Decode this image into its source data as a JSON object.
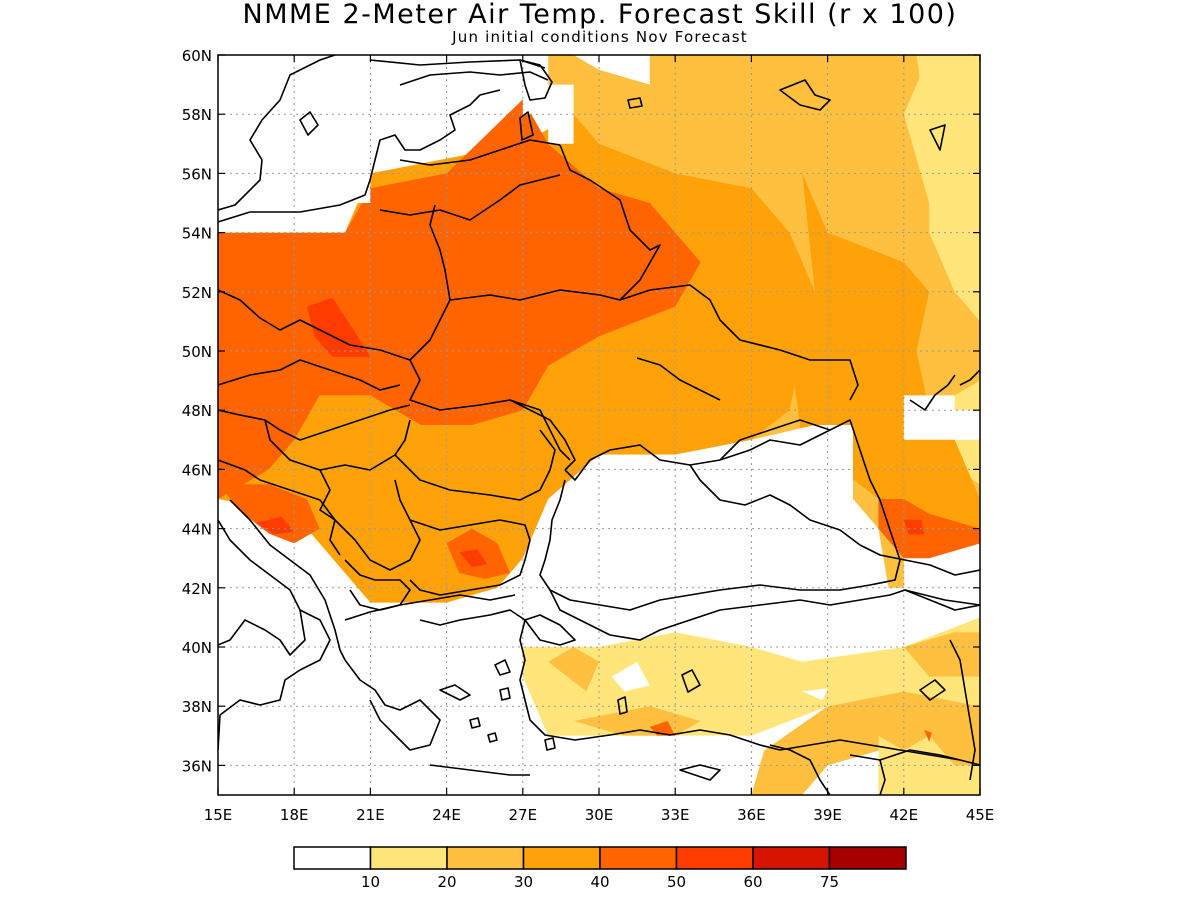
{
  "title": "NMME 2-Meter Air Temp. Forecast Skill (r x 100)",
  "subtitle": "Jun initial conditions   Nov Forecast",
  "map": {
    "lon_range": [
      15,
      45
    ],
    "lat_range": [
      35,
      60
    ],
    "lon_ticks": [
      {
        "value": 15,
        "label": "15E"
      },
      {
        "value": 18,
        "label": "18E"
      },
      {
        "value": 21,
        "label": "21E"
      },
      {
        "value": 24,
        "label": "24E"
      },
      {
        "value": 27,
        "label": "27E"
      },
      {
        "value": 30,
        "label": "30E"
      },
      {
        "value": 33,
        "label": "33E"
      },
      {
        "value": 36,
        "label": "36E"
      },
      {
        "value": 39,
        "label": "39E"
      },
      {
        "value": 42,
        "label": "42E"
      },
      {
        "value": 45,
        "label": "45E"
      }
    ],
    "lat_ticks": [
      {
        "value": 36,
        "label": "36N"
      },
      {
        "value": 38,
        "label": "38N"
      },
      {
        "value": 40,
        "label": "40N"
      },
      {
        "value": 42,
        "label": "42N"
      },
      {
        "value": 44,
        "label": "44N"
      },
      {
        "value": 46,
        "label": "46N"
      },
      {
        "value": 48,
        "label": "48N"
      },
      {
        "value": 50,
        "label": "50N"
      },
      {
        "value": 52,
        "label": "52N"
      },
      {
        "value": 54,
        "label": "54N"
      },
      {
        "value": 56,
        "label": "56N"
      },
      {
        "value": 58,
        "label": "58N"
      },
      {
        "value": 60,
        "label": "60N"
      }
    ],
    "grid": "dotted"
  },
  "colorbar": {
    "colors": [
      "#ffffff",
      "#ffe57a",
      "#ffc040",
      "#ffa20a",
      "#ff6400",
      "#ff3c00",
      "#d71400",
      "#a50000"
    ],
    "labels": [
      "10",
      "20",
      "30",
      "40",
      "50",
      "60",
      "75"
    ]
  },
  "regions": [
    {
      "name": "c2-east",
      "level": 2,
      "pts": [
        [
          28,
          60
        ],
        [
          45,
          60
        ],
        [
          45,
          44
        ],
        [
          42,
          44
        ],
        [
          42,
          42
        ],
        [
          41,
          42
        ],
        [
          40,
          44.5
        ],
        [
          38,
          45
        ],
        [
          36,
          46
        ],
        [
          33,
          46.5
        ],
        [
          30,
          46.5
        ],
        [
          28,
          47
        ],
        [
          28,
          60
        ]
      ]
    },
    {
      "name": "c1-far-east",
      "level": 1,
      "pts": [
        [
          42.5,
          60
        ],
        [
          45,
          60
        ],
        [
          45,
          51
        ],
        [
          44,
          52
        ],
        [
          43,
          54
        ],
        [
          43,
          57
        ],
        [
          42.5,
          60
        ]
      ]
    },
    {
      "name": "c1-east-lower",
      "level": 1,
      "pts": [
        [
          45,
          49
        ],
        [
          44,
          48.5
        ],
        [
          44,
          46
        ],
        [
          45,
          45.5
        ],
        [
          45,
          49
        ]
      ]
    },
    {
      "name": "c3-central",
      "level": 3,
      "pts": [
        [
          15,
          54
        ],
        [
          20,
          54
        ],
        [
          21,
          56
        ],
        [
          27,
          57
        ],
        [
          29,
          58
        ],
        [
          30,
          57
        ],
        [
          33,
          56
        ],
        [
          36,
          55.5
        ],
        [
          37.5,
          54
        ],
        [
          38.5,
          52
        ],
        [
          38,
          50
        ],
        [
          37.5,
          48
        ],
        [
          36,
          47
        ],
        [
          33,
          46.5
        ],
        [
          30,
          46.5
        ],
        [
          28,
          45
        ],
        [
          27,
          43
        ],
        [
          26,
          42
        ],
        [
          24,
          41.5
        ],
        [
          21,
          41.5
        ],
        [
          20,
          42.5
        ],
        [
          19,
          43.5
        ],
        [
          18,
          44.5
        ],
        [
          15,
          45
        ],
        [
          15,
          54
        ]
      ]
    },
    {
      "name": "c3-ural-edge",
      "level": 3,
      "pts": [
        [
          38,
          56
        ],
        [
          39,
          54
        ],
        [
          42,
          53
        ],
        [
          43,
          52
        ],
        [
          42.5,
          50
        ],
        [
          43,
          48
        ],
        [
          44,
          47
        ],
        [
          45,
          45
        ],
        [
          45,
          44
        ],
        [
          43,
          44
        ],
        [
          41,
          45
        ],
        [
          38,
          47
        ],
        [
          37.5,
          50
        ],
        [
          38.5,
          52
        ],
        [
          38,
          56
        ]
      ]
    },
    {
      "name": "c4-core",
      "level": 4,
      "pts": [
        [
          15,
          54
        ],
        [
          20,
          54
        ],
        [
          21,
          55.5
        ],
        [
          24,
          56
        ],
        [
          27,
          58.5
        ],
        [
          28,
          57
        ],
        [
          30,
          55.5
        ],
        [
          32,
          55
        ],
        [
          33,
          54
        ],
        [
          34,
          53
        ],
        [
          33,
          51.5
        ],
        [
          30,
          50.5
        ],
        [
          28,
          49.5
        ],
        [
          27,
          48
        ],
        [
          25,
          47.5
        ],
        [
          23,
          47.5
        ],
        [
          21,
          48.5
        ],
        [
          19,
          48.5
        ],
        [
          18,
          47
        ],
        [
          17,
          46
        ],
        [
          15,
          45
        ],
        [
          15,
          54
        ]
      ]
    },
    {
      "name": "c4-balkan",
      "level": 4,
      "pts": [
        [
          15,
          45.5
        ],
        [
          17,
          45.5
        ],
        [
          18.5,
          45
        ],
        [
          19,
          44
        ],
        [
          18,
          43.5
        ],
        [
          16.5,
          44
        ],
        [
          15,
          45.5
        ]
      ]
    },
    {
      "name": "c5-poland",
      "level": 5,
      "pts": [
        [
          18.5,
          51.5
        ],
        [
          19.5,
          51.8
        ],
        [
          20.5,
          50.5
        ],
        [
          21,
          49.8
        ],
        [
          19.5,
          49.8
        ],
        [
          18.8,
          50.5
        ],
        [
          18.5,
          51.5
        ]
      ]
    },
    {
      "name": "c4-bulgaria",
      "level": 4,
      "pts": [
        [
          24,
          43.5
        ],
        [
          25,
          44
        ],
        [
          26,
          43.5
        ],
        [
          26.5,
          42.5
        ],
        [
          25.5,
          42.3
        ],
        [
          24.5,
          42.5
        ],
        [
          24,
          43.5
        ]
      ]
    },
    {
      "name": "c5-bulgaria",
      "level": 5,
      "pts": [
        [
          24.5,
          43.2
        ],
        [
          25.2,
          43.3
        ],
        [
          25.6,
          42.8
        ],
        [
          25,
          42.7
        ],
        [
          24.5,
          43.2
        ]
      ]
    },
    {
      "name": "c5-balkan",
      "level": 5,
      "pts": [
        [
          16.5,
          44.2
        ],
        [
          17.5,
          44.4
        ],
        [
          18,
          43.9
        ],
        [
          17.2,
          43.8
        ],
        [
          16.5,
          44.2
        ]
      ]
    },
    {
      "name": "c4-caucasus",
      "level": 4,
      "pts": [
        [
          41,
          45
        ],
        [
          42,
          45
        ],
        [
          43,
          44.5
        ],
        [
          45,
          44
        ],
        [
          45,
          43.5
        ],
        [
          43,
          43
        ],
        [
          42,
          43
        ],
        [
          41,
          44
        ],
        [
          41,
          45
        ]
      ]
    },
    {
      "name": "c5-caucasus",
      "level": 5,
      "pts": [
        [
          42,
          44.3
        ],
        [
          42.7,
          44.3
        ],
        [
          42.8,
          43.8
        ],
        [
          42.2,
          43.8
        ],
        [
          42,
          44.3
        ]
      ]
    },
    {
      "name": "c2-turkey-east",
      "level": 2,
      "pts": [
        [
          39,
          38
        ],
        [
          42,
          38.5
        ],
        [
          45,
          38
        ],
        [
          45,
          35
        ],
        [
          42,
          35
        ],
        [
          41,
          36.5
        ],
        [
          39,
          36
        ],
        [
          38,
          35
        ],
        [
          36,
          35
        ],
        [
          36.5,
          36.5
        ],
        [
          39,
          38
        ]
      ]
    },
    {
      "name": "c1-turkey",
      "level": 1,
      "pts": [
        [
          27,
          40
        ],
        [
          30,
          40
        ],
        [
          33,
          40.5
        ],
        [
          36,
          40
        ],
        [
          38,
          39.5
        ],
        [
          42,
          40
        ],
        [
          45,
          41
        ],
        [
          45,
          38
        ],
        [
          42,
          38.5
        ],
        [
          39,
          38
        ],
        [
          36,
          37
        ],
        [
          33,
          37
        ],
        [
          30,
          37
        ],
        [
          28,
          37
        ],
        [
          27,
          38
        ],
        [
          27,
          40
        ]
      ]
    },
    {
      "name": "c2-turkey-spots",
      "level": 2,
      "pts": [
        [
          28,
          39.5
        ],
        [
          29,
          40
        ],
        [
          30,
          39.5
        ],
        [
          29.5,
          38.5
        ],
        [
          28,
          39.5
        ]
      ]
    },
    {
      "name": "c2-turkey-south",
      "level": 2,
      "pts": [
        [
          29,
          37.5
        ],
        [
          31,
          37
        ],
        [
          33,
          37
        ],
        [
          34,
          37.5
        ],
        [
          32,
          38
        ],
        [
          29,
          37.5
        ]
      ]
    },
    {
      "name": "c4-turkey-south",
      "level": 4,
      "pts": [
        [
          32,
          37.3
        ],
        [
          32.7,
          37.5
        ],
        [
          33,
          37
        ],
        [
          32.3,
          37
        ],
        [
          32,
          37.3
        ]
      ]
    },
    {
      "name": "c2-lake-region",
      "level": 2,
      "pts": [
        [
          42,
          40
        ],
        [
          44,
          40.5
        ],
        [
          45,
          40.5
        ],
        [
          45,
          39
        ],
        [
          43,
          39
        ],
        [
          42,
          40
        ]
      ]
    },
    {
      "name": "c1-southeast",
      "level": 1,
      "pts": [
        [
          41,
          37
        ],
        [
          42,
          36.5
        ],
        [
          43,
          37
        ],
        [
          44,
          36
        ],
        [
          45,
          36
        ],
        [
          45,
          35
        ],
        [
          41,
          35
        ],
        [
          41,
          37
        ]
      ]
    },
    {
      "name": "c4-syria-spot",
      "level": 4,
      "pts": [
        [
          42.8,
          37.2
        ],
        [
          43.1,
          37.1
        ],
        [
          43,
          36.8
        ],
        [
          42.8,
          37.2
        ]
      ]
    },
    {
      "name": "c1-ne-gap",
      "level": 1,
      "pts": [
        [
          42,
          58
        ],
        [
          43,
          60
        ],
        [
          45,
          60
        ],
        [
          45,
          56
        ],
        [
          43,
          55
        ],
        [
          42,
          58
        ]
      ]
    }
  ],
  "masks": [
    {
      "name": "baltic-sea",
      "pts": [
        [
          18,
          60
        ],
        [
          27,
          60
        ],
        [
          27,
          59
        ],
        [
          29,
          59
        ],
        [
          29,
          57
        ],
        [
          28,
          57
        ],
        [
          28,
          58
        ],
        [
          27,
          58
        ],
        [
          27,
          58.5
        ],
        [
          26,
          59.5
        ],
        [
          25,
          58.5
        ],
        [
          24,
          57
        ],
        [
          22,
          56.5
        ],
        [
          21,
          57
        ],
        [
          21,
          55
        ],
        [
          20,
          55
        ],
        [
          20,
          54
        ],
        [
          15,
          54
        ],
        [
          15,
          57
        ],
        [
          16,
          57
        ],
        [
          16,
          58.5
        ],
        [
          17,
          60
        ],
        [
          18,
          60
        ]
      ]
    },
    {
      "name": "gulf-finland",
      "pts": [
        [
          29,
          60
        ],
        [
          32,
          60
        ],
        [
          32,
          59
        ],
        [
          30,
          59.5
        ],
        [
          29,
          60
        ]
      ]
    },
    {
      "name": "black-sea",
      "pts": [
        [
          30,
          46.5
        ],
        [
          33,
          46.5
        ],
        [
          36,
          47
        ],
        [
          38.5,
          47.5
        ],
        [
          40,
          47.5
        ],
        [
          40,
          45
        ],
        [
          41,
          44
        ],
        [
          41.5,
          41.5
        ],
        [
          40,
          41
        ],
        [
          38,
          41
        ],
        [
          36,
          41.5
        ],
        [
          33,
          41
        ],
        [
          31,
          41
        ],
        [
          29,
          41.2
        ],
        [
          28,
          42
        ],
        [
          27.8,
          43.5
        ],
        [
          29,
          44.5
        ],
        [
          30,
          46.5
        ]
      ]
    },
    {
      "name": "azov-east",
      "pts": [
        [
          44,
          48
        ],
        [
          45,
          48
        ],
        [
          45,
          47
        ],
        [
          44,
          47
        ],
        [
          44,
          48
        ]
      ]
    },
    {
      "name": "adriatic",
      "pts": [
        [
          15,
          45
        ],
        [
          16,
          44.5
        ],
        [
          17.5,
          43.5
        ],
        [
          19,
          42.5
        ],
        [
          19.5,
          41.5
        ],
        [
          20,
          41
        ],
        [
          21,
          40.5
        ],
        [
          21,
          39
        ],
        [
          22,
          38
        ],
        [
          22,
          35
        ],
        [
          15,
          35
        ],
        [
          15,
          45
        ]
      ]
    },
    {
      "name": "aegean",
      "pts": [
        [
          22,
          40.5
        ],
        [
          23,
          41
        ],
        [
          25,
          40.5
        ],
        [
          27,
          40.5
        ],
        [
          27,
          39
        ],
        [
          27.5,
          38
        ],
        [
          28,
          37
        ],
        [
          28,
          35
        ],
        [
          22,
          35
        ],
        [
          22,
          38
        ],
        [
          22,
          40.5
        ]
      ]
    },
    {
      "name": "turkey-gap-1",
      "pts": [
        [
          28,
          40
        ],
        [
          28.5,
          41
        ],
        [
          30,
          40.5
        ],
        [
          30,
          40
        ],
        [
          28,
          40
        ]
      ]
    },
    {
      "name": "turkey-gap-2",
      "pts": [
        [
          30.5,
          39
        ],
        [
          31.5,
          39.5
        ],
        [
          32,
          38.7
        ],
        [
          31,
          38.5
        ],
        [
          30.5,
          39
        ]
      ]
    },
    {
      "name": "turkey-gap-3",
      "pts": [
        [
          38,
          38.5
        ],
        [
          39,
          38.6
        ],
        [
          38.8,
          38.2
        ],
        [
          38,
          38.5
        ]
      ]
    },
    {
      "name": "med-south",
      "pts": [
        [
          27,
          37
        ],
        [
          36,
          37
        ],
        [
          36,
          35
        ],
        [
          27,
          35
        ],
        [
          27,
          37
        ]
      ]
    },
    {
      "name": "east-gap",
      "pts": [
        [
          43.5,
          42
        ],
        [
          45,
          42.5
        ],
        [
          45,
          41
        ],
        [
          43.5,
          41
        ],
        [
          43.5,
          42
        ]
      ]
    },
    {
      "name": "volga-gap",
      "pts": [
        [
          42,
          48.5
        ],
        [
          44,
          48.5
        ],
        [
          44,
          47
        ],
        [
          42,
          47
        ],
        [
          42,
          48.5
        ]
      ]
    }
  ]
}
